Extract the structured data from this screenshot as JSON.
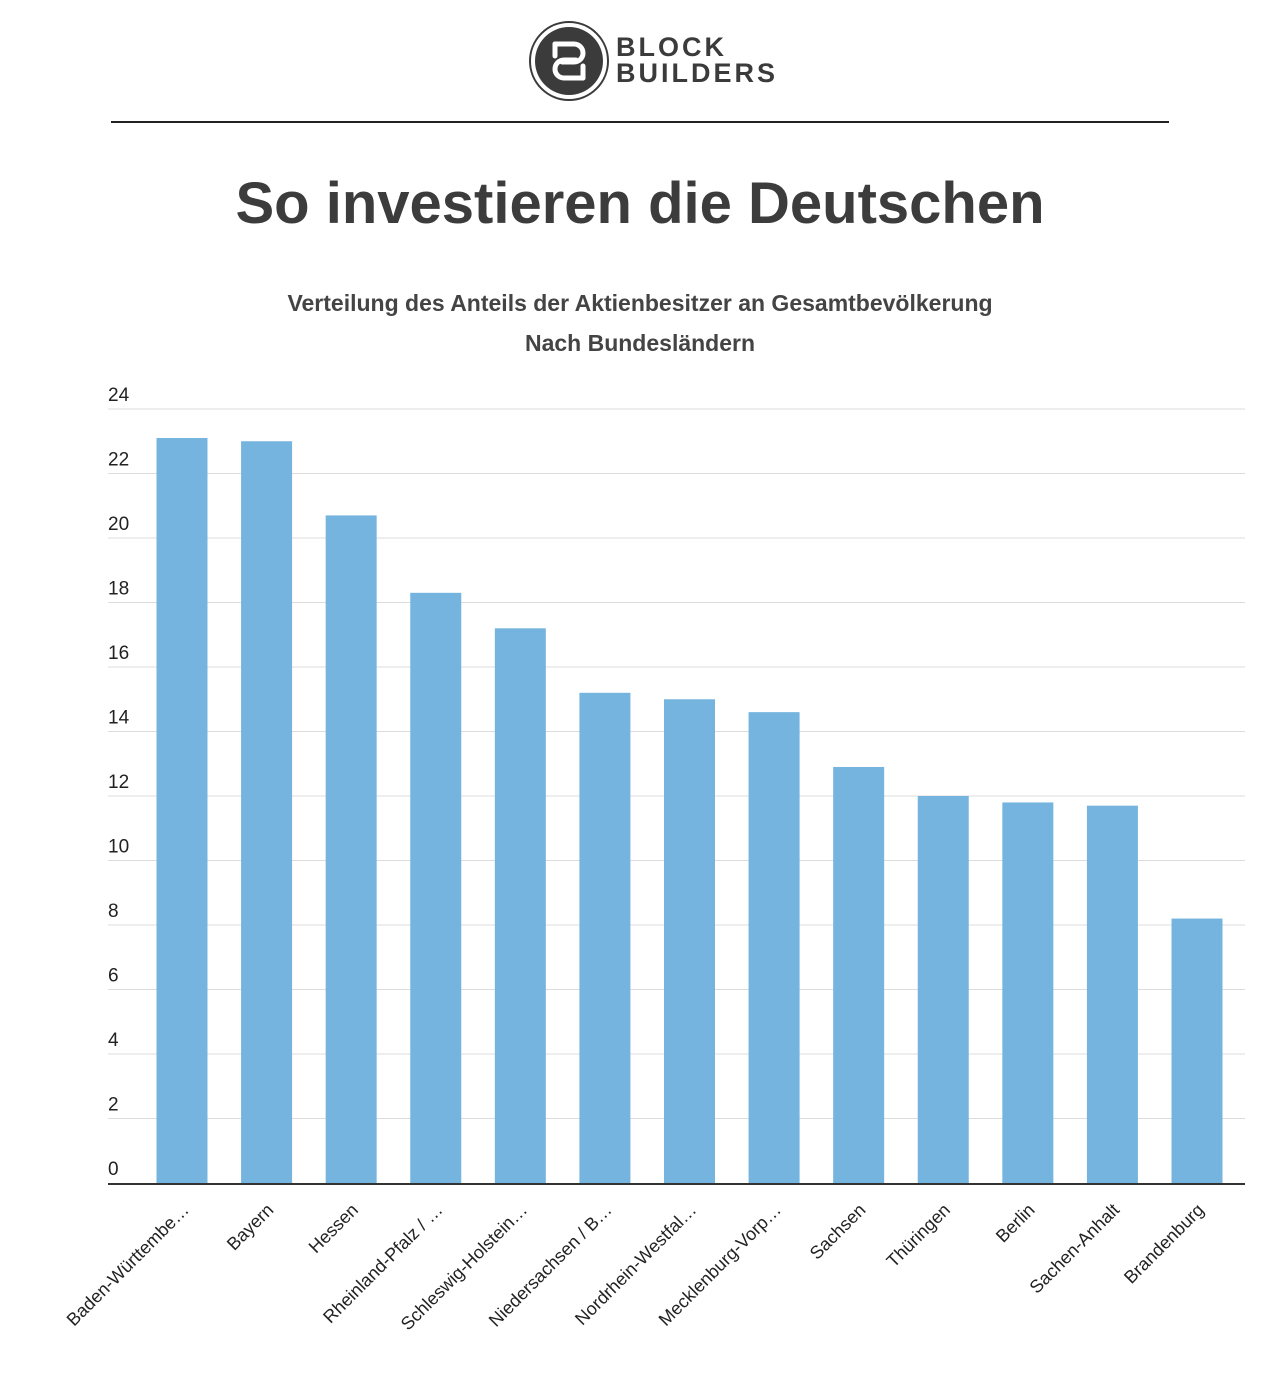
{
  "brand": {
    "line1": "BLOCK",
    "line2": "BUILDERS",
    "badge_icon": "linked-b-icon"
  },
  "page_title": "So investieren die Deutschen",
  "chart_data": {
    "type": "bar",
    "title": "Verteilung des Anteils der Aktienbesitzer an Gesamtbevölkerung",
    "subtitle": "Nach Bundesländern",
    "xlabel": "",
    "ylabel": "",
    "ylim": [
      0,
      24
    ],
    "yticks": [
      0,
      2,
      4,
      6,
      8,
      10,
      12,
      14,
      16,
      18,
      20,
      22,
      24
    ],
    "grid": true,
    "bar_color": "#75b4df",
    "categories": [
      "Baden-Württembe…",
      "Bayern",
      "Hessen",
      "Rheinland-Pfalz / …",
      "Schleswig-Holstein…",
      "Niedersachsen / B…",
      "Nordrhein-Westfal…",
      "Mecklenburg-Vorp…",
      "Sachsen",
      "Thüringen",
      "Berlin",
      "Sachen-Anhalt",
      "Brandenburg"
    ],
    "values": [
      23.1,
      23.0,
      20.7,
      18.3,
      17.2,
      15.2,
      15.0,
      14.6,
      12.9,
      12.0,
      11.8,
      11.7,
      8.2
    ]
  }
}
